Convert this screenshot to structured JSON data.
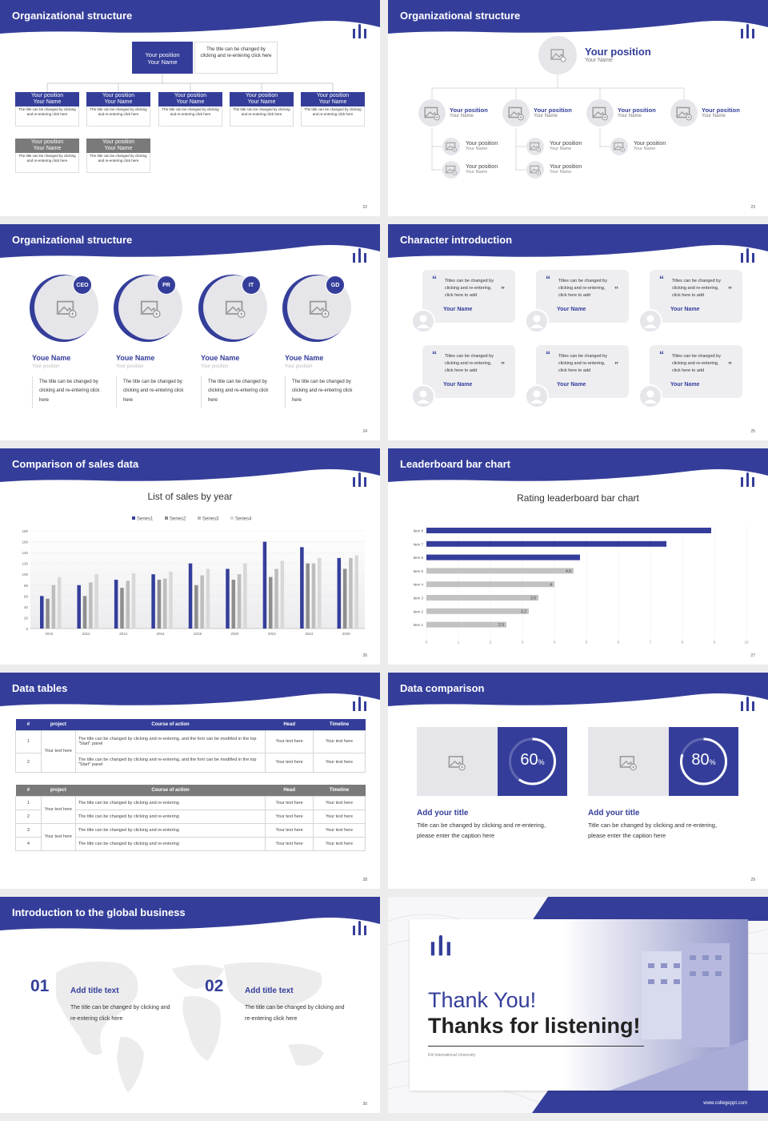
{
  "colors": {
    "primary": "#343e9a",
    "gray": "#7a7a7a",
    "light": "#e6e5ea",
    "bar_gray": "#bcbcbc"
  },
  "s22": {
    "title": "Organizational structure",
    "page": "22",
    "top": {
      "position": "Your position",
      "name": "Your Name",
      "desc": "The title can be changed by clicking and re-entering click here"
    },
    "cards": [
      {
        "position": "Your position",
        "name": "Your Name",
        "desc": "The title can be changed by clicking and re-entering click here"
      },
      {
        "position": "Your position",
        "name": "Your Name",
        "desc": "The title can be changed by clicking and re-entering click here"
      },
      {
        "position": "Your position",
        "name": "Your Name",
        "desc": "The title can be changed by clicking and re-entering click here"
      },
      {
        "position": "Your position",
        "name": "Your Name",
        "desc": "The title can be changed by clicking and re-entering click here"
      },
      {
        "position": "Your position",
        "name": "Your Name",
        "desc": "The title can be changed by clicking and re-entering click here"
      }
    ],
    "gray_cards": [
      {
        "position": "Your position",
        "name": "Your Name",
        "desc": "The title can be changed by clicking and re-entering click here"
      },
      {
        "position": "Your position",
        "name": "Your Name",
        "desc": "The title can be changed by clicking and re-entering click here"
      }
    ]
  },
  "s23": {
    "title": "Organizational structure",
    "page": "23",
    "top": {
      "position": "Your position",
      "name": "Your Name"
    },
    "row": [
      {
        "position": "Your position",
        "name": "Your Name"
      },
      {
        "position": "Your position",
        "name": "Your Name"
      },
      {
        "position": "Your position",
        "name": "Your Name"
      },
      {
        "position": "Your position",
        "name": "Your Name"
      }
    ],
    "subs": [
      {
        "position": "Your position",
        "name": "Your Name"
      },
      {
        "position": "Your position",
        "name": "Your Name"
      },
      {
        "position": "Your position",
        "name": "Your Name"
      },
      {
        "position": "Your position",
        "name": "Your Name"
      },
      {
        "position": "Your position",
        "name": "Your Name"
      }
    ]
  },
  "s24": {
    "title": "Organizational structure",
    "page": "24",
    "people": [
      {
        "badge": "CEO",
        "name": "Youe Name",
        "position": "Your position",
        "desc": "The title can be changed by clicking and re-entering click here"
      },
      {
        "badge": "PR",
        "name": "Youe Name",
        "position": "Your position",
        "desc": "The title can be changed by clicking and re-entering click here"
      },
      {
        "badge": "IT",
        "name": "Youe Name",
        "position": "Your position",
        "desc": "The title can be changed by clicking and re-entering click here"
      },
      {
        "badge": "GD",
        "name": "Youe Name",
        "position": "Your position",
        "desc": "The title can be changed by clicking and re-entering click here"
      }
    ]
  },
  "s25": {
    "title": "Character introduction",
    "page": "25",
    "quotes": [
      {
        "text": "Titles can be changed by clicking and re-entering, click here to add",
        "name": "Your Name"
      },
      {
        "text": "Titles can be changed by clicking and re-entering, click here to add",
        "name": "Your Name"
      },
      {
        "text": "Titles can be changed by clicking and re-entering, click here to add",
        "name": "Your Name"
      },
      {
        "text": "Titles can be changed by clicking and re-entering, click here to add",
        "name": "Your Name"
      },
      {
        "text": "Titles can be changed by clicking and re-entering, click here to add",
        "name": "Your Name"
      },
      {
        "text": "Titles can be changed by clicking and re-entering, click here to add",
        "name": "Your Name"
      }
    ]
  },
  "s26": {
    "title": "Comparison of sales data",
    "page": "26"
  },
  "s27": {
    "title": "Leaderboard bar chart",
    "page": "27"
  },
  "chart_data": [
    {
      "type": "bar",
      "title": "List of sales by year",
      "categories": [
        "2010",
        "2012",
        "2014",
        "2016",
        "2018",
        "2020",
        "2022",
        "2024",
        "2026"
      ],
      "series": [
        {
          "name": "Series1",
          "color": "#343e9a",
          "values": [
            60,
            80,
            90,
            100,
            120,
            110,
            160,
            150,
            130
          ]
        },
        {
          "name": "Series2",
          "color": "#8e8e8e",
          "values": [
            55,
            60,
            75,
            90,
            80,
            90,
            95,
            120,
            110
          ]
        },
        {
          "name": "Series3",
          "color": "#bdbdbd",
          "values": [
            80,
            85,
            88,
            92,
            98,
            100,
            110,
            120,
            130
          ]
        },
        {
          "name": "Series4",
          "color": "#d8d8d8",
          "values": [
            95,
            100,
            102,
            105,
            110,
            120,
            125,
            130,
            135
          ]
        }
      ],
      "yticks": [
        "0",
        "20",
        "40",
        "60",
        "80",
        "100",
        "120",
        "140",
        "160",
        "180"
      ],
      "ylim": [
        0,
        180
      ],
      "legend": "top"
    },
    {
      "type": "bar",
      "orientation": "horizontal",
      "title": "Rating leaderboard bar chart",
      "categories": [
        "Item 8",
        "Item 7",
        "Item 6",
        "Item 5",
        "Item 4",
        "Item 3",
        "Item 2",
        "Item 1"
      ],
      "values": [
        8.9,
        7.5,
        4.8,
        4.6,
        4.0,
        3.5,
        3.2,
        2.5
      ],
      "labels": [
        "",
        "",
        "",
        "4.6",
        "4",
        "3.5",
        "3.2",
        "2.5"
      ],
      "highlight": [
        true,
        true,
        true,
        false,
        false,
        false,
        false,
        false
      ],
      "xticks": [
        "0",
        "1",
        "2",
        "3",
        "4",
        "5",
        "6",
        "7",
        "8",
        "9",
        "10"
      ],
      "xlim": [
        0,
        10
      ]
    }
  ],
  "s28": {
    "title": "Data tables",
    "page": "28",
    "t1": {
      "headers": [
        "#",
        "project",
        "Course of action",
        "Head",
        "Timeline"
      ],
      "merged": "Your text here",
      "rows": [
        {
          "n": "1",
          "course": "The title can be changed by clicking and re-entering, and the font can be modified in the top \"Start\" panel",
          "head": "Your text here",
          "time": "Your text here"
        },
        {
          "n": "2",
          "course": "The title can be changed by clicking and re-entering, and the font can be modified in the top \"Start\" panel",
          "head": "Your text here",
          "time": "Your text here"
        }
      ]
    },
    "t2": {
      "headers": [
        "#",
        "project",
        "Course of action",
        "Head",
        "Timeline"
      ],
      "merged": [
        "Your text here",
        "Your text here"
      ],
      "rows": [
        {
          "n": "1",
          "course": "The title can be changed by clicking and re-entering",
          "head": "Your text here",
          "time": "Your text here"
        },
        {
          "n": "2",
          "course": "The title can be changed by clicking and re-entering",
          "head": "Your text here",
          "time": "Your text here"
        },
        {
          "n": "3",
          "course": "The title can be changed by clicking and re-entering",
          "head": "Your text here",
          "time": "Your text here"
        },
        {
          "n": "4",
          "course": "The title can be changed by clicking and re-entering",
          "head": "Your text here",
          "time": "Your text here"
        }
      ]
    }
  },
  "s29": {
    "title": "Data comparison",
    "page": "29",
    "items": [
      {
        "percent": 60,
        "percent_text": "60",
        "unit": "%",
        "heading": "Add your title",
        "desc": "Title can be changed by clicking and re-entering, please enter the caption here"
      },
      {
        "percent": 80,
        "percent_text": "80",
        "unit": "%",
        "heading": "Add your title",
        "desc": "Title can be changed by clicking and re-entering, please enter the caption here"
      }
    ]
  },
  "s30": {
    "title": "Introduction to the global business",
    "page": "30",
    "items": [
      {
        "num": "01",
        "heading": "Add title text",
        "desc": "The title can be changed by clicking and re-entering click here"
      },
      {
        "num": "02",
        "heading": "Add title text",
        "desc": "The title can be changed by clicking and re-entering click here"
      }
    ]
  },
  "s31": {
    "thank": "Thank You!",
    "listening": "Thanks for listening!",
    "university": "Kiit International University",
    "website": "www.collegeppt.com"
  }
}
